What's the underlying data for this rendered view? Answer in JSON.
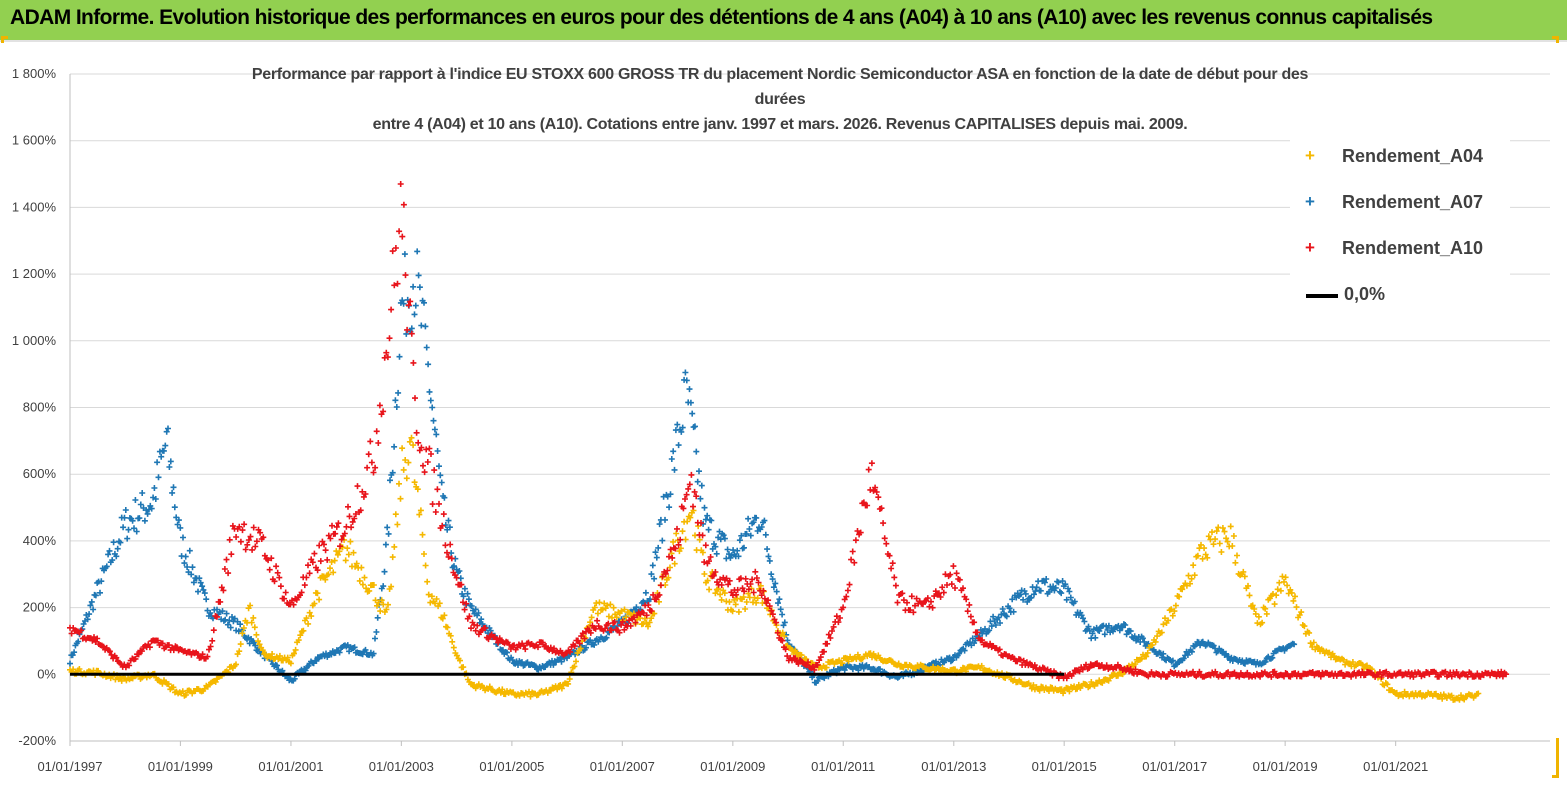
{
  "header": {
    "banner_text": "ADAM Informe. Evolution historique des performances en euros pour des détentions de 4 ans (A04) à 10 ans (A10) avec les revenus connus capitalisés"
  },
  "colors": {
    "banner_bg": "#92d050",
    "a04": "#f5b800",
    "a07": "#1f77b4",
    "a10": "#e8141b",
    "zero": "#000000"
  },
  "chart_data": {
    "type": "scatter",
    "title_lines": [
      "Performance par rapport à l'indice EU STOXX 600 GROSS TR  du placement Nordic Semiconductor ASA en fonction de la date de début pour des",
      "durées",
      "entre 4 (A04) et 10 ans (A10). Cotations entre janv. 1997 et mars. 2026. Revenus CAPITALISES depuis mai. 2009."
    ],
    "xlabel": "",
    "ylabel": "",
    "x_range": [
      "01/01/1997",
      "01/03/2023"
    ],
    "ylim": [
      -200,
      1800
    ],
    "y_ticks": [
      -200,
      0,
      200,
      400,
      600,
      800,
      1000,
      1200,
      1400,
      1600,
      1800
    ],
    "y_tick_labels": [
      "-200%",
      "0%",
      "200%",
      "400%",
      "600%",
      "800%",
      "1 000%",
      "1 200%",
      "1 400%",
      "1 600%",
      "1 800%"
    ],
    "x_tick_labels": [
      "01/01/1997",
      "01/01/1999",
      "01/01/2001",
      "01/01/2003",
      "01/01/2005",
      "01/01/2007",
      "01/01/2009",
      "01/01/2011",
      "01/01/2013",
      "01/01/2015",
      "01/01/2017",
      "01/01/2019",
      "01/01/2021"
    ],
    "grid": "horizontal",
    "legend_position": "top-right",
    "series": [
      {
        "name": "Rendement_A04",
        "marker": "+",
        "points": [
          [
            "1997-01",
            10
          ],
          [
            "1997-07",
            5
          ],
          [
            "1998-01",
            -15
          ],
          [
            "1998-07",
            0
          ],
          [
            "1999-01",
            -60
          ],
          [
            "1999-07",
            -40
          ],
          [
            "2000-01",
            30
          ],
          [
            "2000-04",
            200
          ],
          [
            "2000-07",
            60
          ],
          [
            "2001-01",
            40
          ],
          [
            "2001-07",
            250
          ],
          [
            "2002-01",
            380
          ],
          [
            "2002-07",
            250
          ],
          [
            "2002-10",
            170
          ],
          [
            "2003-01",
            600
          ],
          [
            "2003-03",
            700
          ],
          [
            "2003-07",
            250
          ],
          [
            "2003-10",
            180
          ],
          [
            "2004-01",
            60
          ],
          [
            "2004-04",
            -30
          ],
          [
            "2005-01",
            -60
          ],
          [
            "2005-07",
            -60
          ],
          [
            "2006-01",
            -30
          ],
          [
            "2006-07",
            200
          ],
          [
            "2007-01",
            180
          ],
          [
            "2007-07",
            150
          ],
          [
            "2008-01",
            400
          ],
          [
            "2008-04",
            500
          ],
          [
            "2008-07",
            300
          ],
          [
            "2009-01",
            200
          ],
          [
            "2009-07",
            250
          ],
          [
            "2010-01",
            80
          ],
          [
            "2010-07",
            20
          ],
          [
            "2011-01",
            40
          ],
          [
            "2011-07",
            60
          ],
          [
            "2012-01",
            30
          ],
          [
            "2012-07",
            20
          ],
          [
            "2013-01",
            10
          ],
          [
            "2013-07",
            20
          ],
          [
            "2014-01",
            -10
          ],
          [
            "2014-07",
            -40
          ],
          [
            "2015-01",
            -50
          ],
          [
            "2015-07",
            -30
          ],
          [
            "2016-01",
            0
          ],
          [
            "2016-07",
            60
          ],
          [
            "2017-01",
            200
          ],
          [
            "2017-07",
            370
          ],
          [
            "2018-01",
            420
          ],
          [
            "2018-07",
            150
          ],
          [
            "2019-01",
            280
          ],
          [
            "2019-07",
            90
          ],
          [
            "2020-01",
            40
          ],
          [
            "2020-07",
            20
          ],
          [
            "2021-01",
            -60
          ],
          [
            "2021-07",
            -60
          ],
          [
            "2022-01",
            -70
          ],
          [
            "2022-07",
            -65
          ]
        ]
      },
      {
        "name": "Rendement_A07",
        "marker": "+",
        "points": [
          [
            "1997-01",
            40
          ],
          [
            "1997-07",
            250
          ],
          [
            "1998-01",
            450
          ],
          [
            "1998-07",
            520
          ],
          [
            "1998-10",
            700
          ],
          [
            "1999-01",
            400
          ],
          [
            "1999-07",
            200
          ],
          [
            "2000-01",
            150
          ],
          [
            "2000-07",
            60
          ],
          [
            "2001-01",
            -20
          ],
          [
            "2001-07",
            50
          ],
          [
            "2002-01",
            80
          ],
          [
            "2002-07",
            60
          ],
          [
            "2002-10",
            400
          ],
          [
            "2003-01",
            1100
          ],
          [
            "2003-04",
            1200
          ],
          [
            "2003-07",
            900
          ],
          [
            "2003-10",
            500
          ],
          [
            "2004-01",
            300
          ],
          [
            "2004-04",
            200
          ],
          [
            "2005-01",
            40
          ],
          [
            "2005-07",
            20
          ],
          [
            "2006-01",
            50
          ],
          [
            "2006-07",
            100
          ],
          [
            "2007-01",
            150
          ],
          [
            "2007-07",
            250
          ],
          [
            "2008-01",
            700
          ],
          [
            "2008-03",
            850
          ],
          [
            "2008-07",
            450
          ],
          [
            "2009-01",
            350
          ],
          [
            "2009-07",
            480
          ],
          [
            "2010-01",
            100
          ],
          [
            "2010-07",
            -20
          ],
          [
            "2011-01",
            20
          ],
          [
            "2011-07",
            20
          ],
          [
            "2012-01",
            -10
          ],
          [
            "2012-07",
            20
          ],
          [
            "2013-01",
            50
          ],
          [
            "2013-07",
            120
          ],
          [
            "2014-01",
            200
          ],
          [
            "2014-07",
            270
          ],
          [
            "2015-01",
            250
          ],
          [
            "2015-07",
            120
          ],
          [
            "2016-01",
            150
          ],
          [
            "2016-07",
            90
          ],
          [
            "2017-01",
            30
          ],
          [
            "2017-07",
            100
          ],
          [
            "2018-01",
            50
          ],
          [
            "2018-07",
            30
          ],
          [
            "2019-01",
            80
          ],
          [
            "2019-03",
            90
          ]
        ]
      },
      {
        "name": "Rendement_A10",
        "marker": "+",
        "points": [
          [
            "1997-01",
            140
          ],
          [
            "1997-07",
            100
          ],
          [
            "1998-01",
            20
          ],
          [
            "1998-07",
            100
          ],
          [
            "1999-01",
            70
          ],
          [
            "1999-07",
            50
          ],
          [
            "2000-01",
            450
          ],
          [
            "2000-07",
            380
          ],
          [
            "2001-01",
            200
          ],
          [
            "2001-07",
            350
          ],
          [
            "2002-01",
            450
          ],
          [
            "2002-07",
            650
          ],
          [
            "2002-10",
            1000
          ],
          [
            "2003-01",
            1400
          ],
          [
            "2003-04",
            800
          ],
          [
            "2003-07",
            620
          ],
          [
            "2004-01",
            300
          ],
          [
            "2004-04",
            150
          ],
          [
            "2005-01",
            80
          ],
          [
            "2005-07",
            90
          ],
          [
            "2006-01",
            60
          ],
          [
            "2006-07",
            150
          ],
          [
            "2007-01",
            140
          ],
          [
            "2007-07",
            200
          ],
          [
            "2008-01",
            400
          ],
          [
            "2008-04",
            600
          ],
          [
            "2008-07",
            350
          ],
          [
            "2009-01",
            250
          ],
          [
            "2009-07",
            280
          ],
          [
            "2010-01",
            50
          ],
          [
            "2010-07",
            20
          ],
          [
            "2011-01",
            200
          ],
          [
            "2011-07",
            600
          ],
          [
            "2012-01",
            220
          ],
          [
            "2012-07",
            200
          ],
          [
            "2013-01",
            300
          ],
          [
            "2013-07",
            100
          ],
          [
            "2014-01",
            50
          ],
          [
            "2014-07",
            20
          ],
          [
            "2015-01",
            -10
          ],
          [
            "2015-07",
            30
          ],
          [
            "2016-01",
            20
          ],
          [
            "2016-07",
            0
          ],
          [
            "2017-01",
            0
          ],
          [
            "2018-01",
            0
          ],
          [
            "2019-01",
            0
          ],
          [
            "2020-01",
            0
          ],
          [
            "2021-01",
            0
          ],
          [
            "2022-01",
            0
          ],
          [
            "2023-01",
            0
          ]
        ]
      },
      {
        "name": "0,0%",
        "marker": "line",
        "points": [
          [
            "1997-01",
            0
          ],
          [
            "2015-01",
            0
          ]
        ]
      }
    ]
  }
}
